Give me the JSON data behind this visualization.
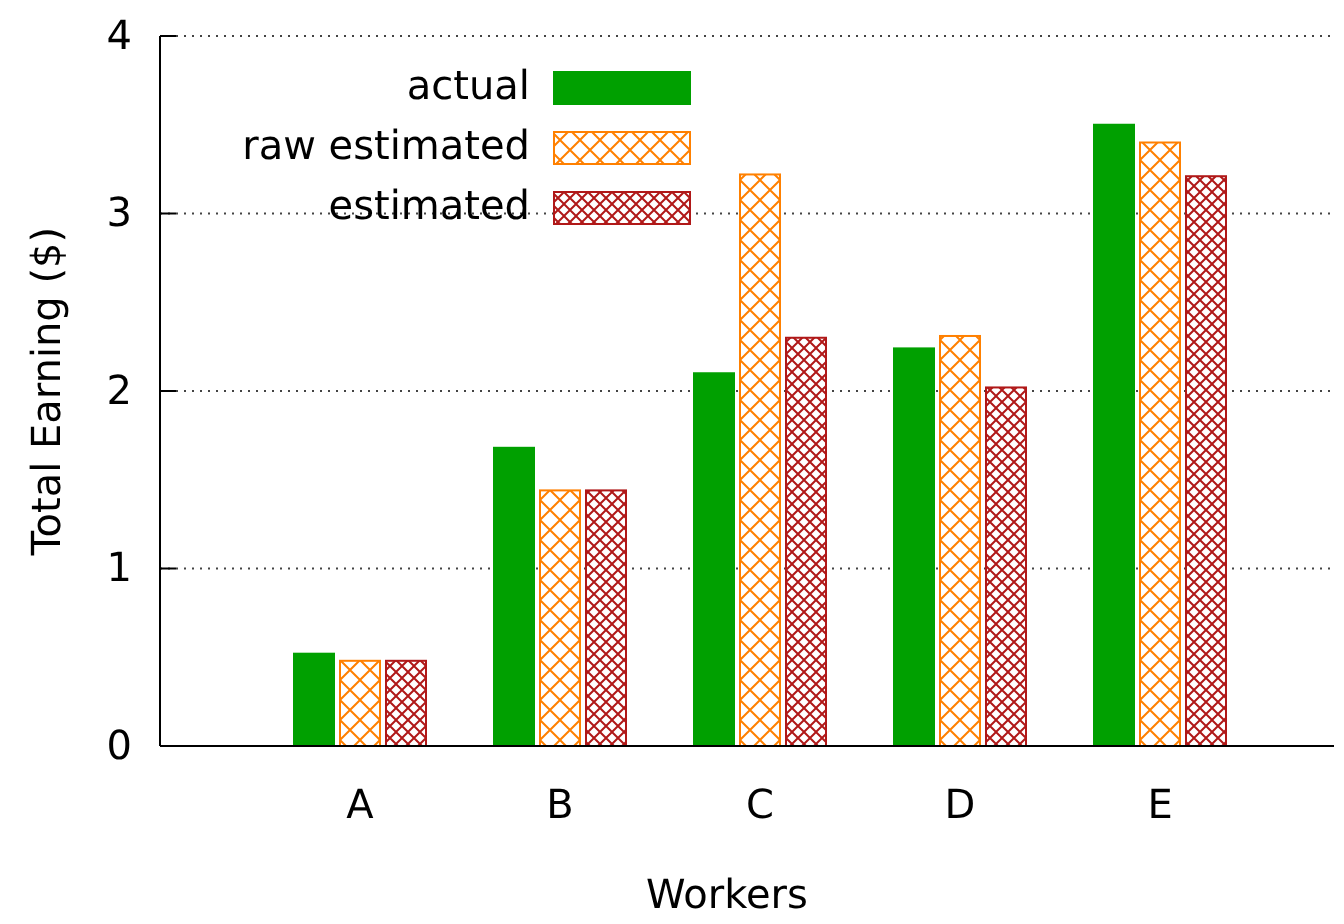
{
  "chart_data": {
    "type": "bar",
    "xlabel": "Workers",
    "ylabel": "Total Earning ($)",
    "categories": [
      "A",
      "B",
      "C",
      "D",
      "E"
    ],
    "series": [
      {
        "name": "actual",
        "color": "#00a000",
        "values": [
          0.52,
          1.68,
          2.1,
          2.24,
          3.5
        ]
      },
      {
        "name": "raw estimated",
        "color": "#ff8000",
        "values": [
          0.48,
          1.44,
          3.22,
          2.31,
          3.4
        ]
      },
      {
        "name": "estimated",
        "color": "#b01818",
        "values": [
          0.48,
          1.44,
          2.3,
          2.02,
          3.21
        ]
      }
    ],
    "ylim": [
      0,
      4
    ],
    "yticks": [
      0,
      1,
      2,
      3,
      4
    ],
    "grid": "y",
    "legend": "top left"
  }
}
